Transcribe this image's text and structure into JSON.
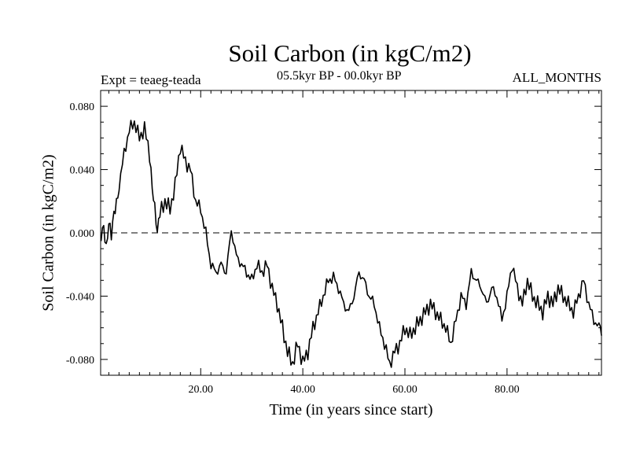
{
  "chart_data": {
    "type": "line",
    "title": "Soil Carbon (in kgC/m2)",
    "subtitle_left": "Expt = teaeg-teada",
    "subtitle_center": "05.5kyr BP - 00.0kyr BP",
    "subtitle_right": "ALL_MONTHS",
    "xlabel": "Time (in years since start)",
    "ylabel": "Soil Carbon (in kgC/m2)",
    "xlim": [
      0.4,
      98.5
    ],
    "ylim": [
      -0.09,
      0.09
    ],
    "xticks": [
      20,
      40,
      60,
      80
    ],
    "xtick_labels": [
      "20.00",
      "40.00",
      "60.00",
      "80.00"
    ],
    "yticks": [
      0.08,
      0.04,
      0.0,
      -0.04,
      -0.08
    ],
    "ytick_labels": [
      "0.080",
      "0.040",
      "0.000",
      "-0.040",
      "-0.080"
    ],
    "zero_line": "dashed",
    "series": [
      {
        "name": "Soil Carbon",
        "x": [
          0.5,
          1,
          1.5,
          2,
          2.5,
          3,
          3.5,
          4,
          5,
          6,
          7,
          8,
          9,
          10,
          10.5,
          11,
          11.5,
          12,
          13,
          14,
          15,
          16,
          17,
          18,
          19,
          20,
          21,
          22,
          23,
          24,
          25,
          26,
          27,
          28,
          29,
          30,
          31,
          32,
          33,
          34,
          35,
          36,
          37,
          38,
          39,
          40,
          41,
          42,
          43,
          44,
          45,
          46,
          47,
          48,
          49,
          50,
          51,
          52,
          53,
          54,
          55,
          56,
          57,
          58,
          59,
          60,
          61,
          62,
          63,
          64,
          65,
          66,
          67,
          68,
          69,
          70,
          71,
          72,
          73,
          74,
          75,
          76,
          77,
          78,
          79,
          80,
          81,
          82,
          83,
          84,
          85,
          86,
          87,
          88,
          89,
          90,
          91,
          92,
          93,
          94,
          95,
          96,
          97,
          98,
          98.5
        ],
        "values": [
          0.0,
          0.006,
          -0.01,
          0.005,
          -0.003,
          0.012,
          0.02,
          0.03,
          0.05,
          0.065,
          0.07,
          0.06,
          0.066,
          0.05,
          0.03,
          0.015,
          -0.002,
          0.012,
          0.02,
          0.015,
          0.03,
          0.055,
          0.045,
          0.04,
          0.02,
          0.015,
          0.0,
          -0.02,
          -0.025,
          -0.02,
          -0.025,
          0.002,
          -0.015,
          -0.02,
          -0.025,
          -0.03,
          -0.02,
          -0.025,
          -0.02,
          -0.035,
          -0.045,
          -0.06,
          -0.075,
          -0.083,
          -0.07,
          -0.082,
          -0.075,
          -0.06,
          -0.05,
          -0.04,
          -0.03,
          -0.028,
          -0.035,
          -0.045,
          -0.05,
          -0.04,
          -0.025,
          -0.03,
          -0.04,
          -0.045,
          -0.06,
          -0.07,
          -0.083,
          -0.075,
          -0.07,
          -0.06,
          -0.065,
          -0.06,
          -0.055,
          -0.05,
          -0.045,
          -0.05,
          -0.055,
          -0.06,
          -0.07,
          -0.055,
          -0.04,
          -0.045,
          -0.025,
          -0.03,
          -0.035,
          -0.045,
          -0.035,
          -0.04,
          -0.055,
          -0.04,
          -0.02,
          -0.035,
          -0.045,
          -0.03,
          -0.04,
          -0.045,
          -0.05,
          -0.04,
          -0.045,
          -0.035,
          -0.04,
          -0.045,
          -0.05,
          -0.04,
          -0.03,
          -0.045,
          -0.055,
          -0.06,
          -0.065
        ]
      }
    ]
  }
}
